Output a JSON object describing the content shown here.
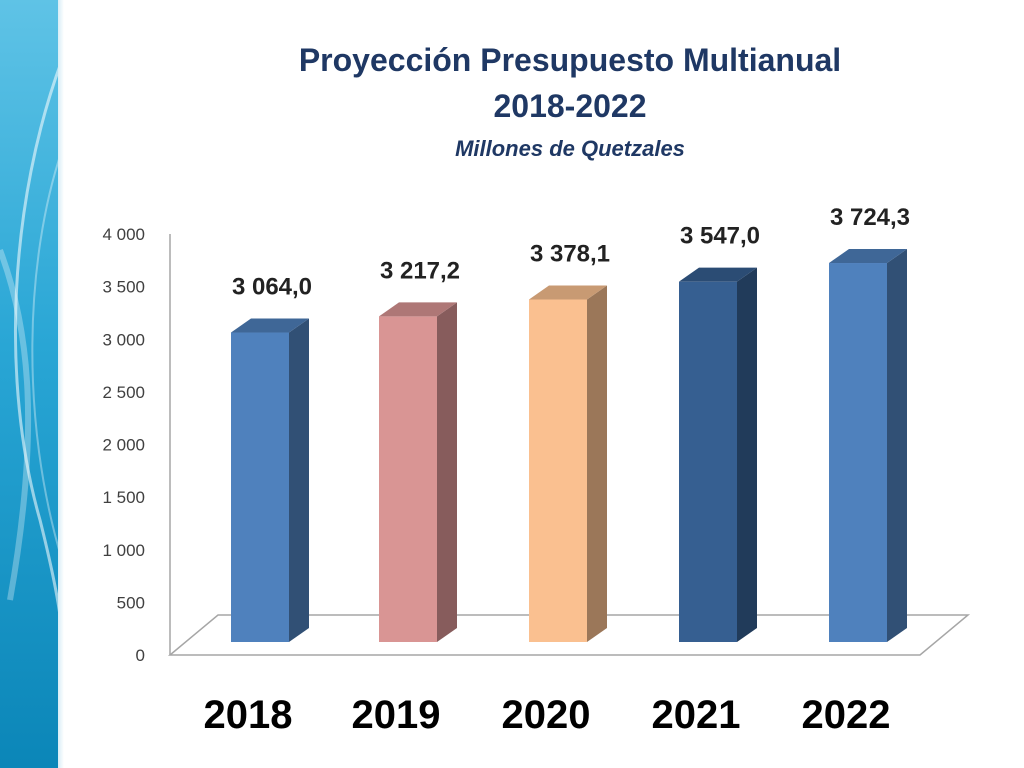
{
  "header": {
    "title_line1": "Proyección Presupuesto Multianual",
    "title_line2": "2018-2022",
    "subtitle": "Millones de Quetzales"
  },
  "chart_data": {
    "type": "bar",
    "title": "Proyección Presupuesto Multianual 2018-2022",
    "subtitle": "Millones de Quetzales",
    "categories": [
      "2018",
      "2019",
      "2020",
      "2021",
      "2022"
    ],
    "values": [
      3064.0,
      3217.2,
      3378.1,
      3547.0,
      3724.3
    ],
    "data_labels": [
      "3 064,0",
      "3 217,2",
      "3 378,1",
      "3 547,0",
      "3 724,3"
    ],
    "colors": [
      "#4f81bd",
      "#d99594",
      "#fac090",
      "#365f91",
      "#4f81bd"
    ],
    "yticks": [
      "0",
      "500",
      "1 000",
      "1 500",
      "2 000",
      "2 500",
      "3 000",
      "3 500",
      "4 000"
    ],
    "ylim": [
      0,
      4000
    ],
    "xlabel": "",
    "ylabel": "",
    "grid": false,
    "legend": "none",
    "style": "3d-column"
  }
}
